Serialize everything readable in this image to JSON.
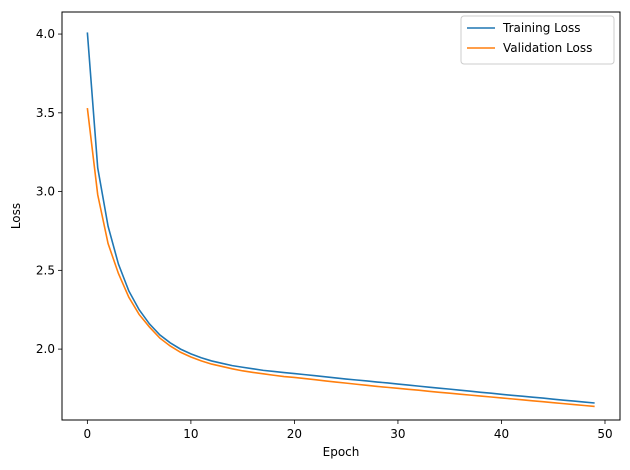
{
  "chart_data": {
    "type": "line",
    "title": "",
    "xlabel": "Epoch",
    "ylabel": "Loss",
    "xlim": [
      -2.45,
      51.45
    ],
    "ylim": [
      1.55,
      4.14
    ],
    "xticks": [
      0,
      10,
      20,
      30,
      40,
      50
    ],
    "yticks": [
      2.0,
      2.5,
      3.0,
      3.5,
      4.0
    ],
    "xtick_labels": [
      "0",
      "10",
      "20",
      "30",
      "40",
      "50"
    ],
    "ytick_labels": [
      "2.0",
      "2.5",
      "3.0",
      "3.5",
      "4.0"
    ],
    "grid": false,
    "legend_position": "upper-right",
    "x": [
      0,
      1,
      2,
      3,
      4,
      5,
      6,
      7,
      8,
      9,
      10,
      11,
      12,
      13,
      14,
      15,
      16,
      17,
      18,
      19,
      20,
      21,
      22,
      23,
      24,
      25,
      26,
      27,
      28,
      29,
      30,
      31,
      32,
      33,
      34,
      35,
      36,
      37,
      38,
      39,
      40,
      41,
      42,
      43,
      44,
      45,
      46,
      47,
      48,
      49
    ],
    "series": [
      {
        "name": "Training Loss",
        "color": "#1f77b4",
        "values": [
          4.01,
          3.15,
          2.78,
          2.54,
          2.37,
          2.25,
          2.16,
          2.09,
          2.04,
          2.0,
          1.97,
          1.945,
          1.925,
          1.91,
          1.895,
          1.885,
          1.875,
          1.865,
          1.858,
          1.851,
          1.845,
          1.838,
          1.831,
          1.824,
          1.817,
          1.81,
          1.804,
          1.798,
          1.791,
          1.785,
          1.778,
          1.772,
          1.765,
          1.758,
          1.752,
          1.746,
          1.739,
          1.733,
          1.726,
          1.72,
          1.713,
          1.707,
          1.701,
          1.695,
          1.689,
          1.682,
          1.676,
          1.67,
          1.664,
          1.658
        ]
      },
      {
        "name": "Validation Loss",
        "color": "#ff7f0e",
        "values": [
          3.53,
          2.98,
          2.67,
          2.48,
          2.33,
          2.22,
          2.14,
          2.07,
          2.02,
          1.98,
          1.95,
          1.925,
          1.905,
          1.89,
          1.875,
          1.862,
          1.852,
          1.843,
          1.834,
          1.826,
          1.82,
          1.813,
          1.806,
          1.798,
          1.791,
          1.784,
          1.777,
          1.77,
          1.763,
          1.757,
          1.751,
          1.745,
          1.739,
          1.732,
          1.726,
          1.72,
          1.714,
          1.708,
          1.702,
          1.696,
          1.69,
          1.684,
          1.678,
          1.672,
          1.666,
          1.66,
          1.654,
          1.648,
          1.642,
          1.636
        ]
      }
    ]
  }
}
